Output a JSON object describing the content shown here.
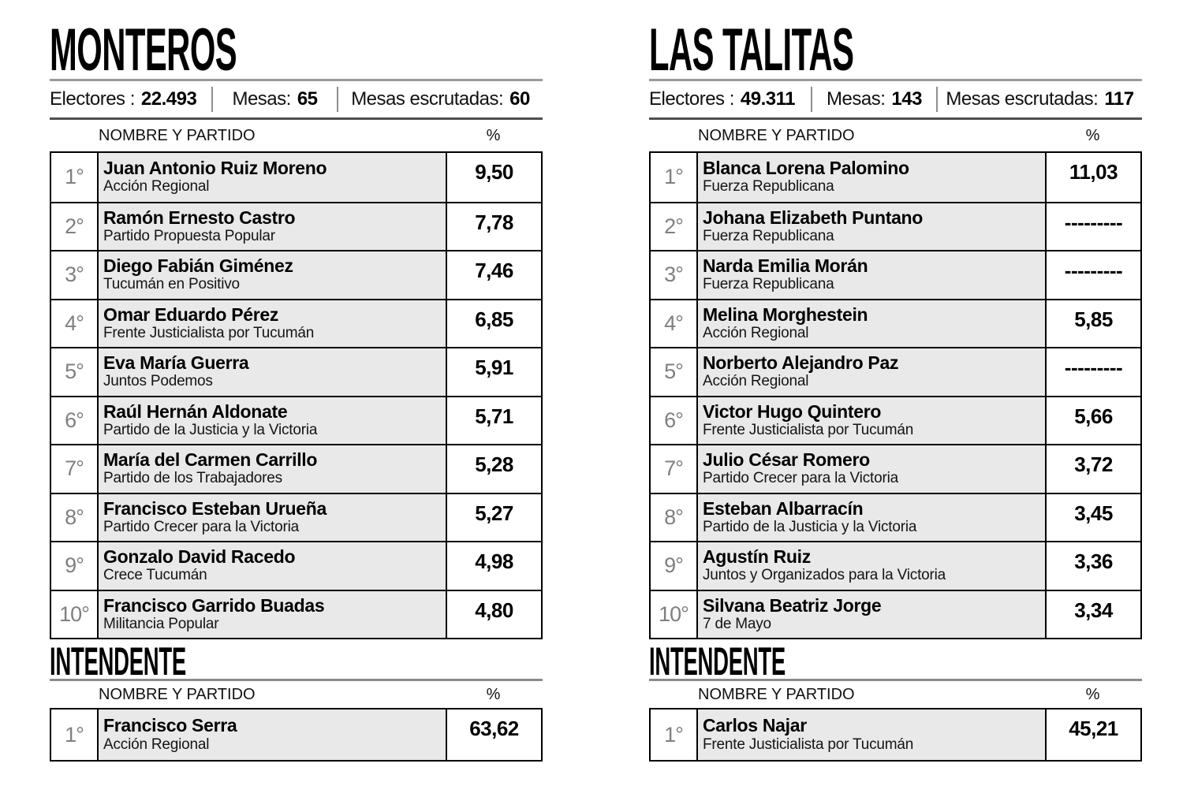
{
  "cities": [
    {
      "title": "MONTEROS",
      "stats": [
        {
          "label": "Electores :",
          "value": "22.493"
        },
        {
          "label": "Mesas:",
          "value": "65"
        },
        {
          "label": "Mesas escrutadas:",
          "value": "60"
        }
      ],
      "table": {
        "headers": {
          "name": "NOMBRE Y PARTIDO",
          "pct": "%"
        },
        "rows": [
          {
            "pos": "1°",
            "name": "Juan Antonio Ruiz Moreno",
            "party": "Acción Regional",
            "pct": "9,50"
          },
          {
            "pos": "2°",
            "name": "Ramón Ernesto Castro",
            "party": "Partido Propuesta Popular",
            "pct": "7,78"
          },
          {
            "pos": "3°",
            "name": "Diego Fabián Giménez",
            "party": "Tucumán en Positivo",
            "pct": "7,46"
          },
          {
            "pos": "4°",
            "name": "Omar Eduardo Pérez",
            "party": "Frente Justicialista por Tucumán",
            "pct": "6,85"
          },
          {
            "pos": "5°",
            "name": "Eva María Guerra",
            "party": "Juntos Podemos",
            "pct": "5,91"
          },
          {
            "pos": "6°",
            "name": "Raúl Hernán Aldonate",
            "party": "Partido de la Justicia y la Victoria",
            "pct": "5,71"
          },
          {
            "pos": "7°",
            "name": "María del Carmen Carrillo",
            "party": "Partido de los Trabajadores",
            "pct": "5,28"
          },
          {
            "pos": "8°",
            "name": "Francisco Esteban Urueña",
            "party": "Partido Crecer para la Victoria",
            "pct": "5,27"
          },
          {
            "pos": "9°",
            "name": "Gonzalo David Racedo",
            "party": "Crece Tucumán",
            "pct": "4,98"
          },
          {
            "pos": "10°",
            "name": "Francisco Garrido Buadas",
            "party": "Militancia Popular",
            "pct": "4,80"
          }
        ]
      },
      "intendente": {
        "title": "INTENDENTE",
        "headers": {
          "name": "NOMBRE Y PARTIDO",
          "pct": "%"
        },
        "rows": [
          {
            "pos": "1°",
            "name": "Francisco Serra",
            "party": "Acción Regional",
            "pct": "63,62"
          }
        ]
      }
    },
    {
      "title": "LAS TALITAS",
      "stats": [
        {
          "label": "Electores :",
          "value": "49.311"
        },
        {
          "label": "Mesas:",
          "value": "143"
        },
        {
          "label": "Mesas escrutadas:",
          "value": "117"
        }
      ],
      "table": {
        "headers": {
          "name": "NOMBRE Y PARTIDO",
          "pct": "%"
        },
        "rows": [
          {
            "pos": "1°",
            "name": "Blanca Lorena Palomino",
            "party": "Fuerza Republicana",
            "pct": "11,03"
          },
          {
            "pos": "2°",
            "name": "Johana Elizabeth Puntano",
            "party": "Fuerza Republicana",
            "pct": "---------"
          },
          {
            "pos": "3°",
            "name": "Narda Emilia Morán",
            "party": "Fuerza Republicana",
            "pct": "---------"
          },
          {
            "pos": "4°",
            "name": "Melina Morghestein",
            "party": "Acción Regional",
            "pct": "5,85"
          },
          {
            "pos": "5°",
            "name": "Norberto Alejandro Paz",
            "party": "Acción Regional",
            "pct": "---------"
          },
          {
            "pos": "6°",
            "name": "Victor Hugo Quintero",
            "party": "Frente Justicialista por Tucumán",
            "pct": "5,66"
          },
          {
            "pos": "7°",
            "name": "Julio César Romero",
            "party": "Partido Crecer para la Victoria",
            "pct": "3,72"
          },
          {
            "pos": "8°",
            "name": "Esteban Albarracín",
            "party": "Partido de la Justicia y la Victoria",
            "pct": "3,45"
          },
          {
            "pos": "9°",
            "name": "Agustín Ruiz",
            "party": "Juntos y Organizados para la Victoria",
            "pct": "3,36"
          },
          {
            "pos": "10°",
            "name": "Silvana Beatriz Jorge",
            "party": "7 de Mayo",
            "pct": "3,34"
          }
        ]
      },
      "intendente": {
        "title": "INTENDENTE",
        "headers": {
          "name": "NOMBRE Y PARTIDO",
          "pct": "%"
        },
        "rows": [
          {
            "pos": "1°",
            "name": "Carlos Najar",
            "party": "Frente Justicialista por Tucumán",
            "pct": "45,21"
          }
        ]
      }
    }
  ]
}
